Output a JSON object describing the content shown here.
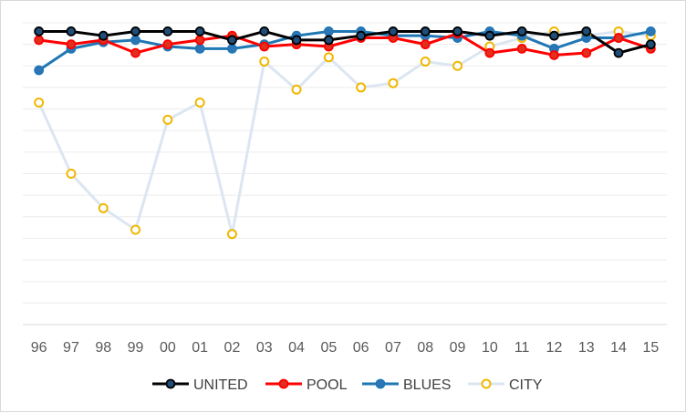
{
  "chart_data": {
    "type": "line",
    "title": "",
    "xlabel": "",
    "ylabel": "",
    "categories": [
      "96",
      "97",
      "98",
      "99",
      "00",
      "01",
      "02",
      "03",
      "04",
      "05",
      "06",
      "07",
      "08",
      "09",
      "10",
      "11",
      "12",
      "13",
      "14",
      "15"
    ],
    "ylim": [
      0,
      14
    ],
    "grid": true,
    "legend_position": "bottom",
    "series": [
      {
        "name": "UNITED",
        "color": "#000000",
        "marker_fill": "#1f4e79",
        "values": [
          13.6,
          13.6,
          13.4,
          13.6,
          13.6,
          13.6,
          13.2,
          13.6,
          13.2,
          13.2,
          13.4,
          13.6,
          13.6,
          13.6,
          13.4,
          13.6,
          13.4,
          13.6,
          12.6,
          13.0
        ]
      },
      {
        "name": "POOL",
        "color": "#ff0000",
        "marker_fill": "#e0301e",
        "values": [
          13.2,
          13.0,
          13.2,
          12.6,
          13.0,
          13.2,
          13.4,
          12.9,
          13.0,
          12.9,
          13.3,
          13.3,
          13.0,
          13.5,
          12.6,
          12.8,
          12.5,
          12.6,
          13.3,
          12.8
        ]
      },
      {
        "name": "BLUES",
        "color": "#1f77b4",
        "marker_fill": "#2e75b6",
        "values": [
          11.8,
          12.8,
          13.1,
          13.2,
          12.9,
          12.8,
          12.8,
          13.0,
          13.4,
          13.6,
          13.6,
          13.4,
          13.4,
          13.3,
          13.6,
          13.4,
          12.8,
          13.3,
          13.3,
          13.6
        ]
      },
      {
        "name": "CITY",
        "color": "#dce6f2",
        "marker_fill": "#ffffff",
        "marker_stroke": "#f0b800",
        "values": [
          10.3,
          7.0,
          5.4,
          4.4,
          9.5,
          10.3,
          4.2,
          12.2,
          10.9,
          12.4,
          11.0,
          11.2,
          12.2,
          12.0,
          12.9,
          13.3,
          13.6,
          13.4,
          13.6,
          13.4
        ]
      }
    ]
  }
}
